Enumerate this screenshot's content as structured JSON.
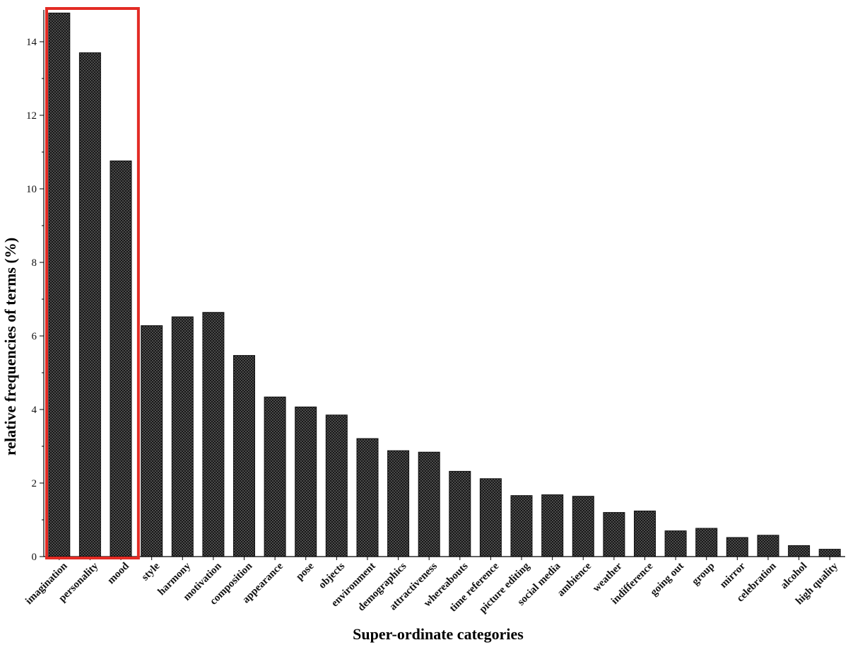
{
  "chart_data": {
    "type": "bar",
    "xlabel": "Super-ordinate categories",
    "ylabel": "relative frequencies of terms (%)",
    "ylim": [
      0,
      14.8
    ],
    "yticks": [
      0,
      2,
      4,
      6,
      8,
      10,
      12,
      14
    ],
    "grid": false,
    "bar_pattern": "crosshatch",
    "bar_color": "#333333",
    "highlight": {
      "categories": [
        "imagination",
        "personality",
        "mood"
      ],
      "color": "#e32b24"
    },
    "categories": [
      "imagination",
      "personality",
      "mood",
      "style",
      "harmony",
      "motivation",
      "composition",
      "appearance",
      "pose",
      "objects",
      "environment",
      "demographics",
      "attractiveness",
      "whereabouts",
      "time reference",
      "picture editing",
      "social media",
      "ambience",
      "weather",
      "indifference",
      "going out",
      "group",
      "mirror",
      "celebration",
      "alcohol",
      "high quality"
    ],
    "values": [
      14.78,
      13.7,
      10.76,
      6.28,
      6.52,
      6.64,
      5.47,
      4.34,
      4.07,
      3.85,
      3.21,
      2.88,
      2.84,
      2.32,
      2.12,
      1.66,
      1.68,
      1.64,
      1.2,
      1.24,
      0.7,
      0.77,
      0.52,
      0.58,
      0.3,
      0.2
    ]
  }
}
